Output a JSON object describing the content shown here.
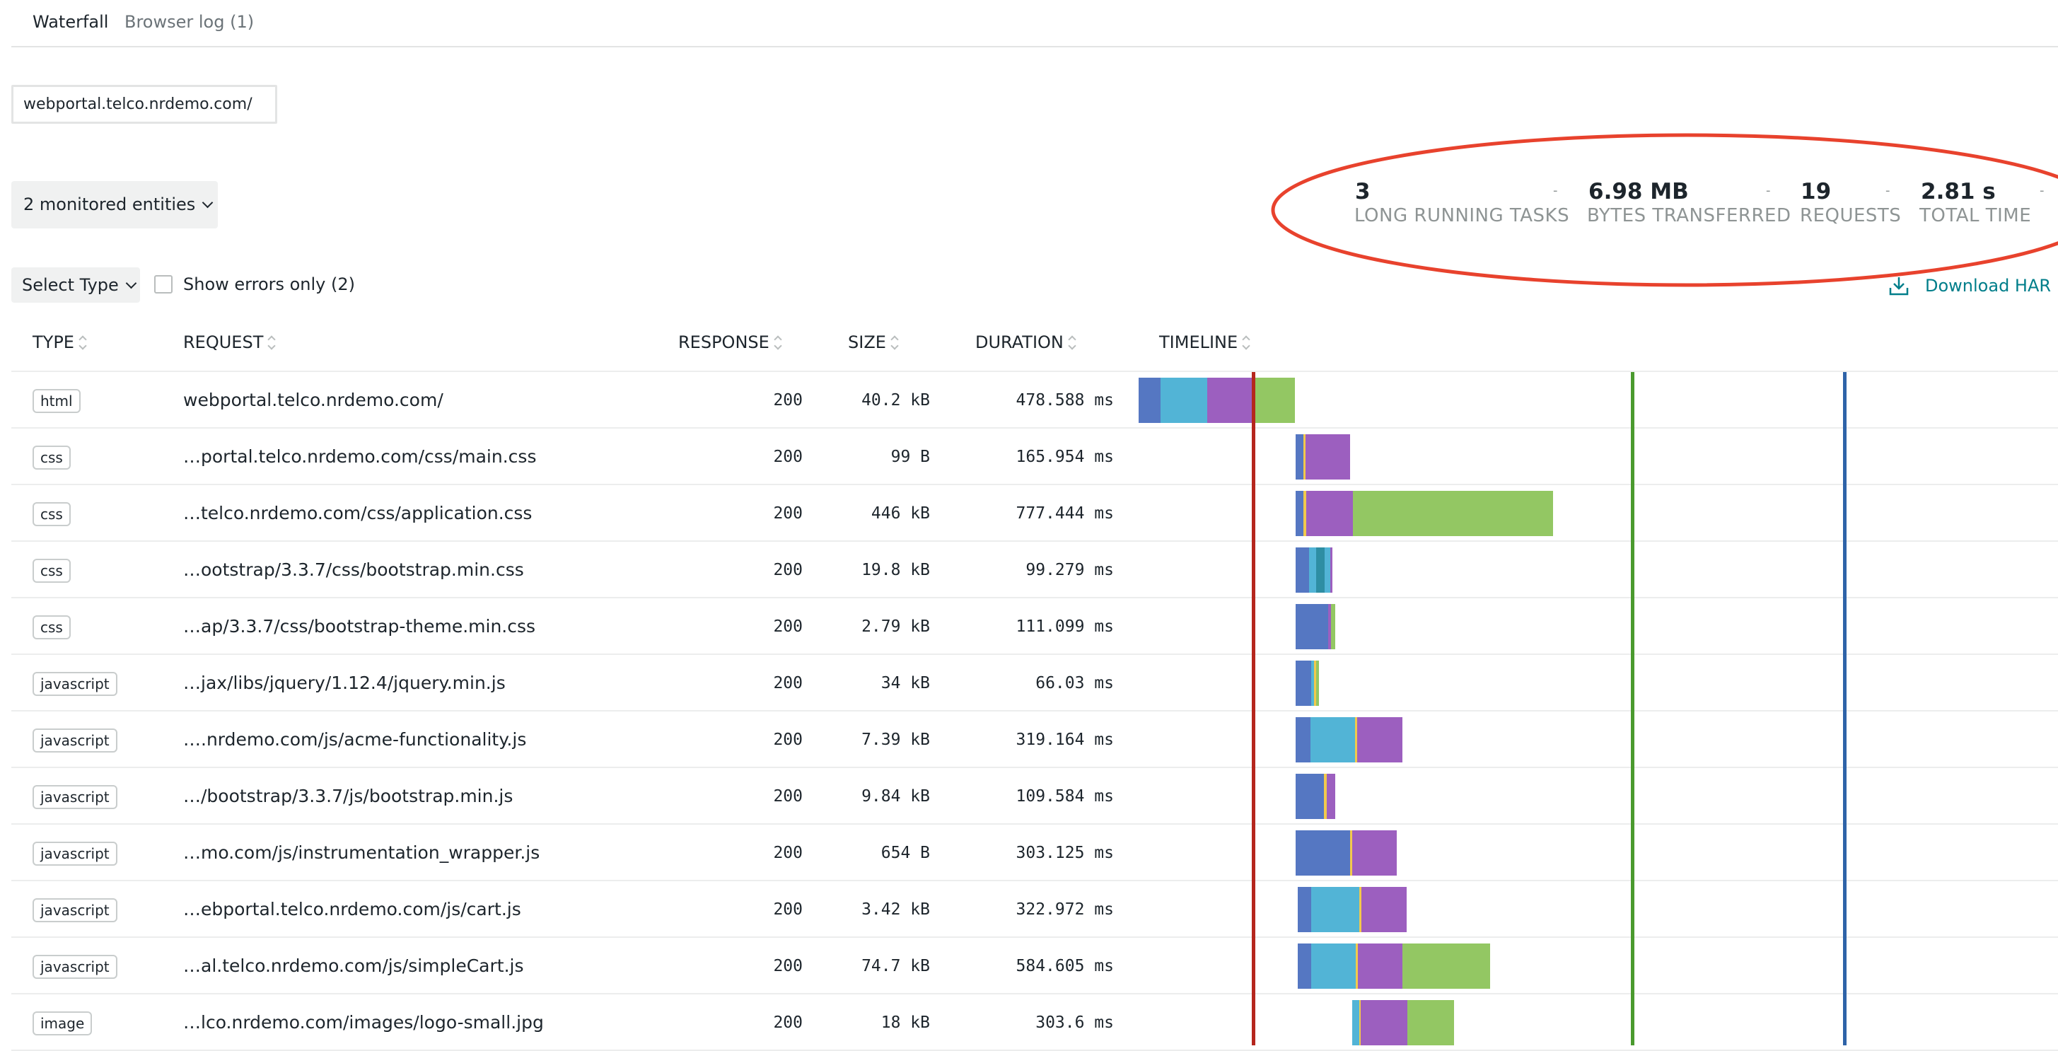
{
  "tabs": [
    "Waterfall",
    "Browser log (1)"
  ],
  "url_filter": {
    "value": "webportal.telco.nrdemo.com/"
  },
  "entities_button": "2 monitored entities",
  "stats": [
    {
      "value": "3",
      "label": "LONG RUNNING TASKS"
    },
    {
      "value": "6.98 MB",
      "label": "BYTES TRANSFERRED"
    },
    {
      "value": "19",
      "label": "REQUESTS"
    },
    {
      "value": "2.81 s",
      "label": "TOTAL TIME"
    }
  ],
  "stat_separator": "-",
  "select_type": "Select Type",
  "errors_only": {
    "label": "Show errors only (2)",
    "checked": false
  },
  "download_har": "Download HAR",
  "columns": {
    "type": "TYPE",
    "request": "REQUEST",
    "response": "RESPONSE",
    "size": "SIZE",
    "duration": "DURATION",
    "timeline": "TIMELINE"
  },
  "colors": {
    "accent": "#007e8a",
    "annotation_circle": "#e8422d",
    "marker_red": "#b5261d",
    "marker_green": "#4a9a2e",
    "marker_blue": "#2e63a8",
    "phase_blue": "#5577c2",
    "phase_cyan": "#52b4d6",
    "phase_purple": "#9c5fbf",
    "phase_green": "#93c763",
    "phase_yellow": "#f2c94c",
    "phase_teal": "#2e8ea3"
  },
  "rows": [
    {
      "type": "html",
      "request": "webportal.telco.nrdemo.com/",
      "response": "200",
      "size": "40.2 kB",
      "duration": "478.588 ms"
    },
    {
      "type": "css",
      "request": "…portal.telco.nrdemo.com/css/main.css",
      "response": "200",
      "size": "99 B",
      "duration": "165.954 ms"
    },
    {
      "type": "css",
      "request": "…telco.nrdemo.com/css/application.css",
      "response": "200",
      "size": "446 kB",
      "duration": "777.444 ms"
    },
    {
      "type": "css",
      "request": "…ootstrap/3.3.7/css/bootstrap.min.css",
      "response": "200",
      "size": "19.8 kB",
      "duration": "99.279 ms"
    },
    {
      "type": "css",
      "request": "…ap/3.3.7/css/bootstrap-theme.min.css",
      "response": "200",
      "size": "2.79 kB",
      "duration": "111.099 ms"
    },
    {
      "type": "javascript",
      "request": "…jax/libs/jquery/1.12.4/jquery.min.js",
      "response": "200",
      "size": "34 kB",
      "duration": "66.03 ms"
    },
    {
      "type": "javascript",
      "request": "….nrdemo.com/js/acme-functionality.js",
      "response": "200",
      "size": "7.39 kB",
      "duration": "319.164 ms"
    },
    {
      "type": "javascript",
      "request": "…/bootstrap/3.3.7/js/bootstrap.min.js",
      "response": "200",
      "size": "9.84 kB",
      "duration": "109.584 ms"
    },
    {
      "type": "javascript",
      "request": "…mo.com/js/instrumentation_wrapper.js",
      "response": "200",
      "size": "654 B",
      "duration": "303.125 ms"
    },
    {
      "type": "javascript",
      "request": "…ebportal.telco.nrdemo.com/js/cart.js",
      "response": "200",
      "size": "3.42 kB",
      "duration": "322.972 ms"
    },
    {
      "type": "javascript",
      "request": "…al.telco.nrdemo.com/js/simpleCart.js",
      "response": "200",
      "size": "74.7 kB",
      "duration": "584.605 ms"
    },
    {
      "type": "image",
      "request": "…lco.nrdemo.com/images/logo-small.jpg",
      "response": "200",
      "size": "18 kB",
      "duration": "303.6 ms"
    }
  ]
}
